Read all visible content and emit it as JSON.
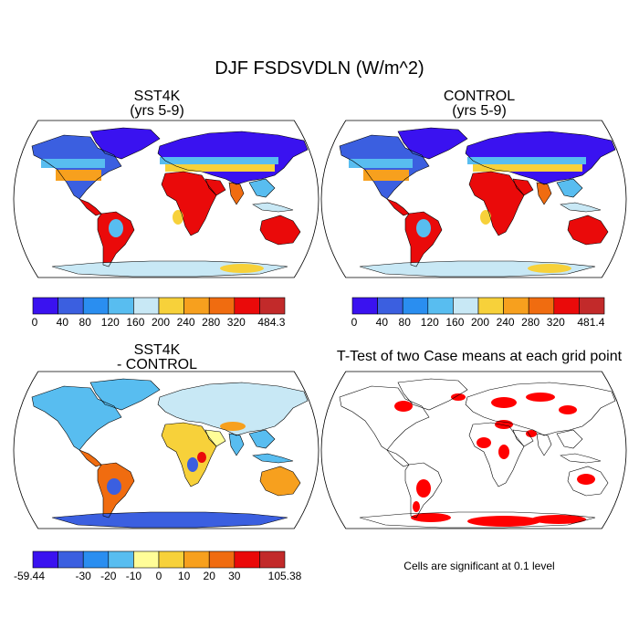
{
  "title": "DJF FSDSVDLN (W/m^2)",
  "panels": [
    {
      "id": "sst4k",
      "title_line1": "SST4K",
      "title_line2": "(yrs 5-9)",
      "colorbar": {
        "labels": [
          "0",
          "40",
          "80",
          "120",
          "160",
          "200",
          "240",
          "280",
          "320",
          "484.3"
        ],
        "colors": [
          "#3a12f0",
          "#3b5fe0",
          "#2a8ef0",
          "#58bdf0",
          "#c8e8f5",
          "#f7d13a",
          "#f7a01e",
          "#f06c10",
          "#ea0a0a",
          "#c22a2a"
        ]
      }
    },
    {
      "id": "control",
      "title_line1": "CONTROL",
      "title_line2": "(yrs 5-9)",
      "colorbar": {
        "labels": [
          "0",
          "40",
          "80",
          "120",
          "160",
          "200",
          "240",
          "280",
          "320",
          "481.4"
        ],
        "colors": [
          "#3a12f0",
          "#3b5fe0",
          "#2a8ef0",
          "#58bdf0",
          "#c8e8f5",
          "#f7d13a",
          "#f7a01e",
          "#f06c10",
          "#ea0a0a",
          "#c22a2a"
        ]
      }
    },
    {
      "id": "diff",
      "title_line1": "SST4K",
      "title_line2": "- CONTROL",
      "colorbar": {
        "labels": [
          "-59.44",
          "-30",
          "-20",
          "-10",
          "0",
          "10",
          "20",
          "30",
          "105.38"
        ],
        "colors": [
          "#3a12f0",
          "#3b5fe0",
          "#2a8ef0",
          "#58bdf0",
          "#fffd98",
          "#f7d13a",
          "#f7a01e",
          "#f06c10",
          "#ea0a0a",
          "#c22a2a"
        ]
      }
    },
    {
      "id": "ttest",
      "title_line1": "T-Test of two Case means at each grid point",
      "note": "Cells are significant at 0.1 level",
      "significant_color": "#ff0000"
    }
  ]
}
